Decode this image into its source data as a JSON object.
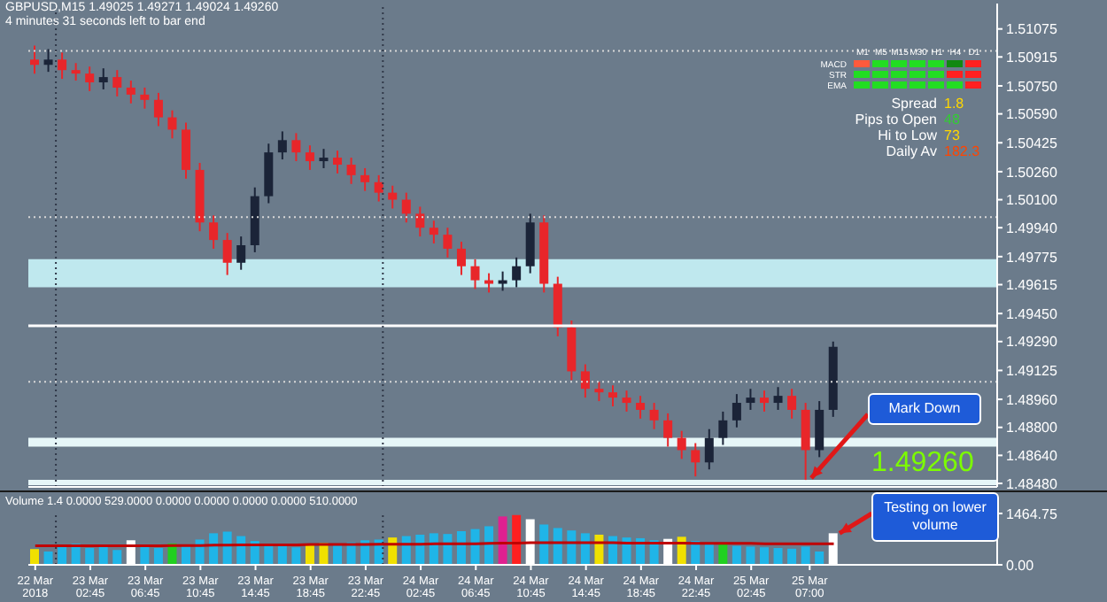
{
  "chart_data": [
    {
      "type": "candlestick",
      "tick_labels": "y",
      "x": [
        "2018-03-22T22:45",
        "2018-03-22T23:45",
        "2018-03-23T00:45",
        "2018-03-23T01:45",
        "2018-03-23T02:45",
        "2018-03-23T03:45",
        "2018-03-23T04:45",
        "2018-03-23T05:45",
        "2018-03-23T06:45",
        "2018-03-23T07:45",
        "2018-03-23T08:45",
        "2018-03-23T09:45",
        "2018-03-23T10:45",
        "2018-03-23T11:45",
        "2018-03-23T12:45",
        "2018-03-23T13:45",
        "2018-03-23T14:45",
        "2018-03-23T15:45",
        "2018-03-23T16:45",
        "2018-03-23T17:45",
        "2018-03-23T18:45",
        "2018-03-23T19:45",
        "2018-03-23T20:45",
        "2018-03-23T21:45",
        "2018-03-23T22:45",
        "2018-03-23T23:45",
        "2018-03-24T00:45",
        "2018-03-24T01:45",
        "2018-03-24T02:45",
        "2018-03-24T03:45",
        "2018-03-24T04:45",
        "2018-03-24T05:45",
        "2018-03-24T06:45",
        "2018-03-24T07:45",
        "2018-03-24T08:45",
        "2018-03-24T09:45",
        "2018-03-24T10:45",
        "2018-03-24T11:45",
        "2018-03-24T12:45",
        "2018-03-24T13:45",
        "2018-03-24T14:45",
        "2018-03-24T15:45",
        "2018-03-24T16:45",
        "2018-03-24T17:45",
        "2018-03-24T18:45",
        "2018-03-24T19:45",
        "2018-03-24T20:45",
        "2018-03-24T21:45",
        "2018-03-24T22:45",
        "2018-03-24T23:45",
        "2018-03-25T00:45",
        "2018-03-25T01:45",
        "2018-03-25T02:45",
        "2018-03-25T03:45",
        "2018-03-25T04:45",
        "2018-03-25T05:45",
        "2018-03-25T06:45",
        "2018-03-25T07:45",
        "2018-03-25T08:45"
      ],
      "ohlc": [
        [
          1.509,
          1.5098,
          1.5082,
          1.5087
        ],
        [
          1.5087,
          1.5096,
          1.5083,
          1.509
        ],
        [
          1.509,
          1.5094,
          1.5079,
          1.5084
        ],
        [
          1.5084,
          1.5088,
          1.5078,
          1.5082
        ],
        [
          1.5082,
          1.5086,
          1.5072,
          1.5077
        ],
        [
          1.5077,
          1.5085,
          1.5073,
          1.508
        ],
        [
          1.508,
          1.5084,
          1.5069,
          1.5074
        ],
        [
          1.5074,
          1.5078,
          1.5065,
          1.507
        ],
        [
          1.507,
          1.5074,
          1.5062,
          1.5067
        ],
        [
          1.5067,
          1.5071,
          1.5052,
          1.5057
        ],
        [
          1.5057,
          1.5061,
          1.5045,
          1.505
        ],
        [
          1.505,
          1.5054,
          1.5022,
          1.5027
        ],
        [
          1.5027,
          1.5031,
          1.4992,
          1.4997
        ],
        [
          1.4997,
          1.5001,
          1.4982,
          1.4987
        ],
        [
          1.4987,
          1.4991,
          1.4967,
          1.4974
        ],
        [
          1.4974,
          1.4989,
          1.497,
          1.4984
        ],
        [
          1.4984,
          1.5017,
          1.498,
          1.5012
        ],
        [
          1.5012,
          1.5042,
          1.5008,
          1.5037
        ],
        [
          1.5037,
          1.5049,
          1.5033,
          1.5044
        ],
        [
          1.5044,
          1.5048,
          1.5032,
          1.5037
        ],
        [
          1.5037,
          1.5041,
          1.5027,
          1.5032
        ],
        [
          1.5032,
          1.5039,
          1.5028,
          1.5034
        ],
        [
          1.5034,
          1.5038,
          1.5025,
          1.503
        ],
        [
          1.503,
          1.5034,
          1.5019,
          1.5024
        ],
        [
          1.5024,
          1.5028,
          1.5015,
          1.502
        ],
        [
          1.502,
          1.5024,
          1.5009,
          1.5014
        ],
        [
          1.5014,
          1.5018,
          1.5005,
          1.501
        ],
        [
          1.501,
          1.5014,
          1.4997,
          1.5002
        ],
        [
          1.5002,
          1.5006,
          1.4989,
          1.4994
        ],
        [
          1.4994,
          1.4998,
          1.4985,
          1.499
        ],
        [
          1.499,
          1.4994,
          1.4977,
          1.4982
        ],
        [
          1.4982,
          1.4986,
          1.4967,
          1.4972
        ],
        [
          1.4972,
          1.4976,
          1.4959,
          1.4964
        ],
        [
          1.4964,
          1.4968,
          1.4957,
          1.4962
        ],
        [
          1.4962,
          1.4969,
          1.4958,
          1.4964
        ],
        [
          1.4964,
          1.4977,
          1.496,
          1.4972
        ],
        [
          1.4972,
          1.5002,
          1.4968,
          1.4997
        ],
        [
          1.4997,
          1.5001,
          1.4957,
          1.4962
        ],
        [
          1.4962,
          1.4966,
          1.4932,
          1.4937
        ],
        [
          1.4937,
          1.4941,
          1.4907,
          1.4912
        ],
        [
          1.4912,
          1.4916,
          1.4897,
          1.4902
        ],
        [
          1.4902,
          1.4906,
          1.4895,
          1.49
        ],
        [
          1.49,
          1.4904,
          1.4892,
          1.4897
        ],
        [
          1.4897,
          1.4901,
          1.4889,
          1.4894
        ],
        [
          1.4894,
          1.4898,
          1.4885,
          1.489
        ],
        [
          1.489,
          1.4894,
          1.4879,
          1.4884
        ],
        [
          1.4884,
          1.4888,
          1.4869,
          1.4874
        ],
        [
          1.4874,
          1.4878,
          1.4862,
          1.4867
        ],
        [
          1.4867,
          1.4871,
          1.4852,
          1.486
        ],
        [
          1.486,
          1.4879,
          1.4856,
          1.4874
        ],
        [
          1.4874,
          1.4889,
          1.487,
          1.4884
        ],
        [
          1.4884,
          1.4899,
          1.488,
          1.4894
        ],
        [
          1.4894,
          1.4902,
          1.489,
          1.4897
        ],
        [
          1.4897,
          1.4901,
          1.4889,
          1.4894
        ],
        [
          1.4894,
          1.4903,
          1.489,
          1.4898
        ],
        [
          1.4898,
          1.4902,
          1.4885,
          1.489
        ],
        [
          1.489,
          1.4894,
          1.485,
          1.4867
        ],
        [
          1.4867,
          1.4895,
          1.4863,
          1.489
        ],
        [
          1.489,
          1.4929,
          1.4886,
          1.4926
        ]
      ],
      "colors": [
        "#e8262a",
        "#1b2438",
        "#e8262a",
        "#e8262a",
        "#e8262a",
        "#1b2438",
        "#e8262a",
        "#e8262a",
        "#e8262a",
        "#e8262a",
        "#e8262a",
        "#e8262a",
        "#e8262a",
        "#e8262a",
        "#e8262a",
        "#1b2438",
        "#1b2438",
        "#1b2438",
        "#1b2438",
        "#e8262a",
        "#e8262a",
        "#1b2438",
        "#e8262a",
        "#e8262a",
        "#e8262a",
        "#e8262a",
        "#e8262a",
        "#e8262a",
        "#e8262a",
        "#e8262a",
        "#e8262a",
        "#e8262a",
        "#e8262a",
        "#e8262a",
        "#1b2438",
        "#1b2438",
        "#1b2438",
        "#e8262a",
        "#e8262a",
        "#e8262a",
        "#e8262a",
        "#e8262a",
        "#e8262a",
        "#e8262a",
        "#e8262a",
        "#e8262a",
        "#e8262a",
        "#e8262a",
        "#e8262a",
        "#1b2438",
        "#1b2438",
        "#1b2438",
        "#1b2438",
        "#e8262a",
        "#1b2438",
        "#e8262a",
        "#e8262a",
        "#1b2438",
        "#1b2438"
      ],
      "xlim": [
        "2018-03-22T22:15",
        "2018-03-25T20:37"
      ],
      "ylim": [
        1.4846,
        1.5122
      ],
      "yticks": [
        {
          "value": 1.51075,
          "label": "1.51075"
        },
        {
          "value": 1.50915,
          "label": "1.50915"
        },
        {
          "value": 1.5075,
          "label": "1.50750"
        },
        {
          "value": 1.5059,
          "label": "1.50590"
        },
        {
          "value": 1.50425,
          "label": "1.50425"
        },
        {
          "value": 1.5026,
          "label": "1.50260"
        },
        {
          "value": 1.501,
          "label": "1.50100"
        },
        {
          "value": 1.4994,
          "label": "1.49940"
        },
        {
          "value": 1.49775,
          "label": "1.49775"
        },
        {
          "value": 1.49615,
          "label": "1.49615"
        },
        {
          "value": 1.4945,
          "label": "1.49450"
        },
        {
          "value": 1.4929,
          "label": "1.49290"
        },
        {
          "value": 1.49125,
          "label": "1.49125"
        },
        {
          "value": 1.4896,
          "label": "1.48960"
        },
        {
          "value": 1.488,
          "label": "1.48800"
        },
        {
          "value": 1.4864,
          "label": "1.48640"
        },
        {
          "value": 1.4848,
          "label": "1.48480"
        }
      ],
      "ref_lines": [
        {
          "axis": "y",
          "value": 1.5095,
          "color": "#d8d8d8",
          "line_style": "dotted"
        },
        {
          "axis": "y",
          "value": 1.5,
          "color": "#d8d8d8",
          "line_style": "dotted"
        },
        {
          "axis": "y",
          "value": 1.4906,
          "color": "#d8d8d8",
          "line_style": "dotted"
        },
        {
          "axis": "y",
          "value": 1.4938,
          "color": "#ffffff",
          "line_style": "solid"
        },
        {
          "axis": "x",
          "value": "2018-03-23T00:15",
          "color": "#303848",
          "line_style": "dotted"
        },
        {
          "axis": "x",
          "value": "2018-03-24T00:00",
          "color": "#303848",
          "line_style": "dotted"
        }
      ],
      "bands": [
        {
          "axis": "y",
          "from": 1.496,
          "to": 1.4976,
          "color": "#bfe8ee"
        },
        {
          "axis": "y",
          "from": 1.4869,
          "to": 1.4874,
          "color": "#e6f6f8"
        },
        {
          "axis": "y",
          "from": 1.4847,
          "to": 1.485,
          "color": "#e6f6f8"
        }
      ],
      "annotations": [
        "GBPUSD,M15 1.49025 1.49271 1.49024 1.49260",
        "4 minutes 31 seconds left to bar end",
        "M1",
        "M5",
        "M15",
        "M30",
        "H1",
        "H4",
        "D1",
        "MACD",
        "STR",
        "EMA",
        "Spread",
        "1.8",
        "Pips to Open",
        "48",
        "Hi to Low",
        "73",
        "Daily Av",
        "182.3",
        "1.49260",
        "Mark Down"
      ]
    },
    {
      "type": "bar",
      "title": "Volume 1.4 0.0000 529.0000 0.0000 0.0000 0.0000 0.0000 510.0000",
      "x": [
        "2018-03-22T22:45",
        "2018-03-22T23:45",
        "2018-03-23T00:45",
        "2018-03-23T01:45",
        "2018-03-23T02:45",
        "2018-03-23T03:45",
        "2018-03-23T04:45",
        "2018-03-23T05:45",
        "2018-03-23T06:45",
        "2018-03-23T07:45",
        "2018-03-23T08:45",
        "2018-03-23T09:45",
        "2018-03-23T10:45",
        "2018-03-23T11:45",
        "2018-03-23T12:45",
        "2018-03-23T13:45",
        "2018-03-23T14:45",
        "2018-03-23T15:45",
        "2018-03-23T16:45",
        "2018-03-23T17:45",
        "2018-03-23T18:45",
        "2018-03-23T19:45",
        "2018-03-23T20:45",
        "2018-03-23T21:45",
        "2018-03-23T22:45",
        "2018-03-23T23:45",
        "2018-03-24T00:45",
        "2018-03-24T01:45",
        "2018-03-24T02:45",
        "2018-03-24T03:45",
        "2018-03-24T04:45",
        "2018-03-24T05:45",
        "2018-03-24T06:45",
        "2018-03-24T07:45",
        "2018-03-24T08:45",
        "2018-03-24T09:45",
        "2018-03-24T10:45",
        "2018-03-24T11:45",
        "2018-03-24T12:45",
        "2018-03-24T13:45",
        "2018-03-24T14:45",
        "2018-03-24T15:45",
        "2018-03-24T16:45",
        "2018-03-24T17:45",
        "2018-03-24T18:45",
        "2018-03-24T19:45",
        "2018-03-24T20:45",
        "2018-03-24T21:45",
        "2018-03-24T22:45",
        "2018-03-24T23:45",
        "2018-03-25T00:45",
        "2018-03-25T01:45",
        "2018-03-25T02:45",
        "2018-03-25T03:45",
        "2018-03-25T04:45",
        "2018-03-25T05:45",
        "2018-03-25T06:45",
        "2018-03-25T07:45",
        "2018-03-25T08:45"
      ],
      "xlim": [
        "2018-03-22T22:15",
        "2018-03-25T20:37"
      ],
      "xticks": [
        {
          "value": "2018-03-22T22:45",
          "label": "22 Mar 2018"
        },
        {
          "value": "2018-03-23T02:45",
          "label": "23 Mar 02:45"
        },
        {
          "value": "2018-03-23T06:45",
          "label": "23 Mar 06:45"
        },
        {
          "value": "2018-03-23T10:45",
          "label": "23 Mar 10:45"
        },
        {
          "value": "2018-03-23T14:45",
          "label": "23 Mar 14:45"
        },
        {
          "value": "2018-03-23T18:45",
          "label": "23 Mar 18:45"
        },
        {
          "value": "2018-03-23T22:45",
          "label": "23 Mar 22:45"
        },
        {
          "value": "2018-03-24T02:45",
          "label": "24 Mar 02:45"
        },
        {
          "value": "2018-03-24T06:45",
          "label": "24 Mar 06:45"
        },
        {
          "value": "2018-03-24T10:45",
          "label": "24 Mar 10:45"
        },
        {
          "value": "2018-03-24T14:45",
          "label": "24 Mar 14:45"
        },
        {
          "value": "2018-03-24T18:45",
          "label": "24 Mar 18:45"
        },
        {
          "value": "2018-03-24T22:45",
          "label": "24 Mar 22:45"
        },
        {
          "value": "2018-03-25T02:45",
          "label": "25 Mar 02:45"
        },
        {
          "value": "2018-03-25T07:00",
          "label": "25 Mar 07:00"
        }
      ],
      "ylim": [
        0,
        1464.75
      ],
      "yticks": [
        {
          "value": 0,
          "label": "0.00"
        },
        {
          "value": 1464.75,
          "label": "1464.75"
        }
      ],
      "series": [
        {
          "type": "bar",
          "values": [
            450,
            380,
            520,
            600,
            480,
            550,
            420,
            700,
            520,
            480,
            610,
            580,
            720,
            900,
            950,
            820,
            680,
            600,
            540,
            500,
            560,
            620,
            580,
            640,
            700,
            720,
            780,
            820,
            860,
            900,
            880,
            960,
            1020,
            1100,
            1380,
            1420,
            1300,
            1150,
            1050,
            980,
            900,
            860,
            820,
            780,
            760,
            700,
            740,
            800,
            680,
            620,
            580,
            540,
            520,
            500,
            480,
            460,
            520,
            380,
            900
          ],
          "colors": [
            "#f0e000",
            "#1fb5e8",
            "#1fb5e8",
            "#1fb5e8",
            "#1fb5e8",
            "#1fb5e8",
            "#1fb5e8",
            "#ffffff",
            "#1fb5e8",
            "#1fb5e8",
            "#20d020",
            "#1fb5e8",
            "#1fb5e8",
            "#1fb5e8",
            "#1fb5e8",
            "#1fb5e8",
            "#1fb5e8",
            "#1fb5e8",
            "#1fb5e8",
            "#1fb5e8",
            "#f0e000",
            "#f0e000",
            "#1fb5e8",
            "#1fb5e8",
            "#1fb5e8",
            "#1fb5e8",
            "#f0e000",
            "#1fb5e8",
            "#1fb5e8",
            "#1fb5e8",
            "#1fb5e8",
            "#1fb5e8",
            "#1fb5e8",
            "#1fb5e8",
            "#e02090",
            "#ff2020",
            "#ffffff",
            "#1fb5e8",
            "#1fb5e8",
            "#1fb5e8",
            "#1fb5e8",
            "#f0e000",
            "#1fb5e8",
            "#1fb5e8",
            "#1fb5e8",
            "#1fb5e8",
            "#ffffff",
            "#f0e000",
            "#1fb5e8",
            "#1fb5e8",
            "#20d020",
            "#1fb5e8",
            "#1fb5e8",
            "#1fb5e8",
            "#1fb5e8",
            "#1fb5e8",
            "#1fb5e8",
            "#1fb5e8",
            "#ffffff"
          ]
        },
        {
          "type": "line",
          "color": "#c00000",
          "values": [
            540,
            540,
            540,
            540,
            540,
            540,
            540,
            540,
            540,
            540,
            550,
            550,
            550,
            560,
            560,
            570,
            570,
            570,
            570,
            570,
            580,
            580,
            580,
            580,
            580,
            590,
            590,
            590,
            590,
            600,
            600,
            600,
            600,
            610,
            620,
            620,
            630,
            630,
            630,
            630,
            630,
            630,
            630,
            620,
            620,
            620,
            620,
            620,
            610,
            610,
            610,
            610,
            610,
            600,
            600,
            600,
            600,
            600,
            600
          ]
        }
      ],
      "ref_lines": [
        {
          "axis": "x",
          "value": "2018-03-23T00:15",
          "color": "#303848",
          "line_style": "dotted"
        },
        {
          "axis": "x",
          "value": "2018-03-24T00:00",
          "color": "#303848",
          "line_style": "dotted"
        }
      ],
      "annotations": [
        {
          "text": "Testing on lower volume",
          "x": "2018-03-25T08:45",
          "y": 900
        }
      ]
    }
  ]
}
